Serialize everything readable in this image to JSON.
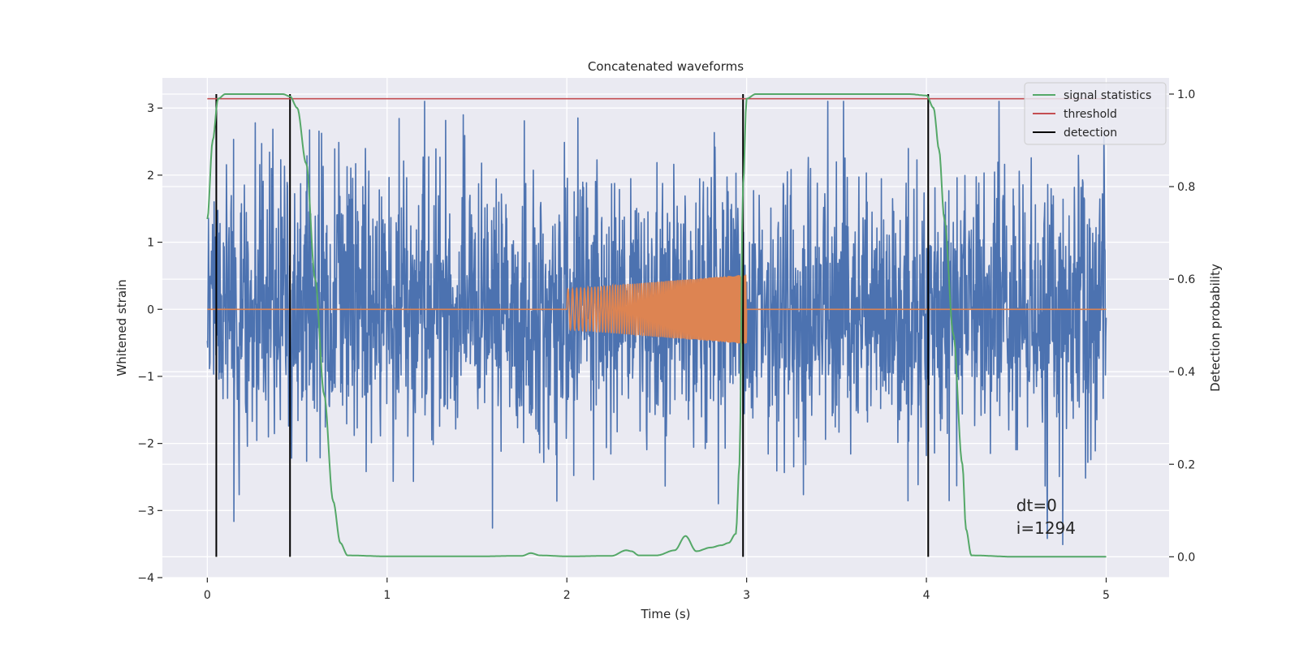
{
  "chart_data": {
    "type": "line",
    "title": "Concatenated waveforms",
    "xlabel": "Time (s)",
    "ylabel": "Whitened strain",
    "y2label": "Detection probability",
    "xlim": [
      -0.25,
      5.35
    ],
    "ylim": [
      -4.0,
      3.45
    ],
    "y2lim": [
      -0.045,
      1.035
    ],
    "xticks": [
      0,
      1,
      2,
      3,
      4,
      5
    ],
    "yticks": [
      -4,
      -3,
      -2,
      -1,
      0,
      1,
      2,
      3
    ],
    "yticklabels": [
      "−4",
      "−3",
      "−2",
      "−1",
      "0",
      "1",
      "2",
      "3"
    ],
    "y2ticks": [
      0.0,
      0.2,
      0.4,
      0.6,
      0.8,
      1.0
    ],
    "y2ticklabels": [
      "0.0",
      "0.2",
      "0.4",
      "0.6",
      "0.8",
      "1.0"
    ],
    "grid": true,
    "legend_position": "top-right",
    "colors": {
      "strain": "#4c72b0",
      "template": "#dd8452",
      "signal_statistics": "#55a868",
      "threshold": "#c44e52",
      "detection": "#000000",
      "background": "#eaeaf2",
      "grid": "#ffffff"
    },
    "series": [
      {
        "name": "signal statistics",
        "axis": "right",
        "x": [
          0.0,
          0.03,
          0.06,
          0.1,
          0.15,
          0.3,
          0.42,
          0.46,
          0.5,
          0.55,
          0.6,
          0.65,
          0.7,
          0.74,
          0.78,
          1.0,
          1.5,
          1.75,
          1.8,
          1.85,
          2.0,
          2.25,
          2.33,
          2.36,
          2.4,
          2.5,
          2.6,
          2.66,
          2.72,
          2.8,
          2.86,
          2.9,
          2.94,
          2.96,
          2.98,
          3.0,
          3.05,
          3.3,
          3.9,
          4.0,
          4.04,
          4.07,
          4.1,
          4.15,
          4.2,
          4.22,
          4.25,
          4.5,
          5.0
        ],
        "y": [
          0.73,
          0.9,
          0.99,
          1.0,
          1.0,
          1.0,
          1.0,
          0.995,
          0.97,
          0.85,
          0.6,
          0.35,
          0.12,
          0.03,
          0.003,
          0.001,
          0.001,
          0.002,
          0.008,
          0.003,
          0.001,
          0.002,
          0.014,
          0.012,
          0.003,
          0.003,
          0.014,
          0.045,
          0.012,
          0.02,
          0.025,
          0.03,
          0.05,
          0.2,
          0.8,
          0.99,
          1.0,
          1.0,
          1.0,
          0.997,
          0.97,
          0.88,
          0.73,
          0.48,
          0.2,
          0.06,
          0.003,
          0.0,
          0.0
        ]
      },
      {
        "name": "threshold",
        "axis": "right",
        "x": [
          0.0,
          5.0
        ],
        "y": [
          0.99,
          0.99
        ]
      },
      {
        "name": "detection",
        "axis": "right",
        "x_lines": [
          0.05,
          0.46,
          2.98,
          4.01
        ],
        "y_range": [
          0.0,
          1.0
        ]
      },
      {
        "axis": "left",
        "kind": "noise",
        "x_range": [
          0.0,
          5.0
        ],
        "typical_band": [
          -1.2,
          1.2
        ],
        "extremes": [
          -3.65,
          3.1
        ]
      },
      {
        "axis": "left",
        "kind": "chirp",
        "x_range": [
          0.0,
          5.0
        ],
        "active_range": [
          2.0,
          3.0
        ],
        "amplitude_start": 0.3,
        "amplitude_end": 0.52
      }
    ],
    "annotations": [
      "dt=0",
      "i=1294"
    ]
  }
}
